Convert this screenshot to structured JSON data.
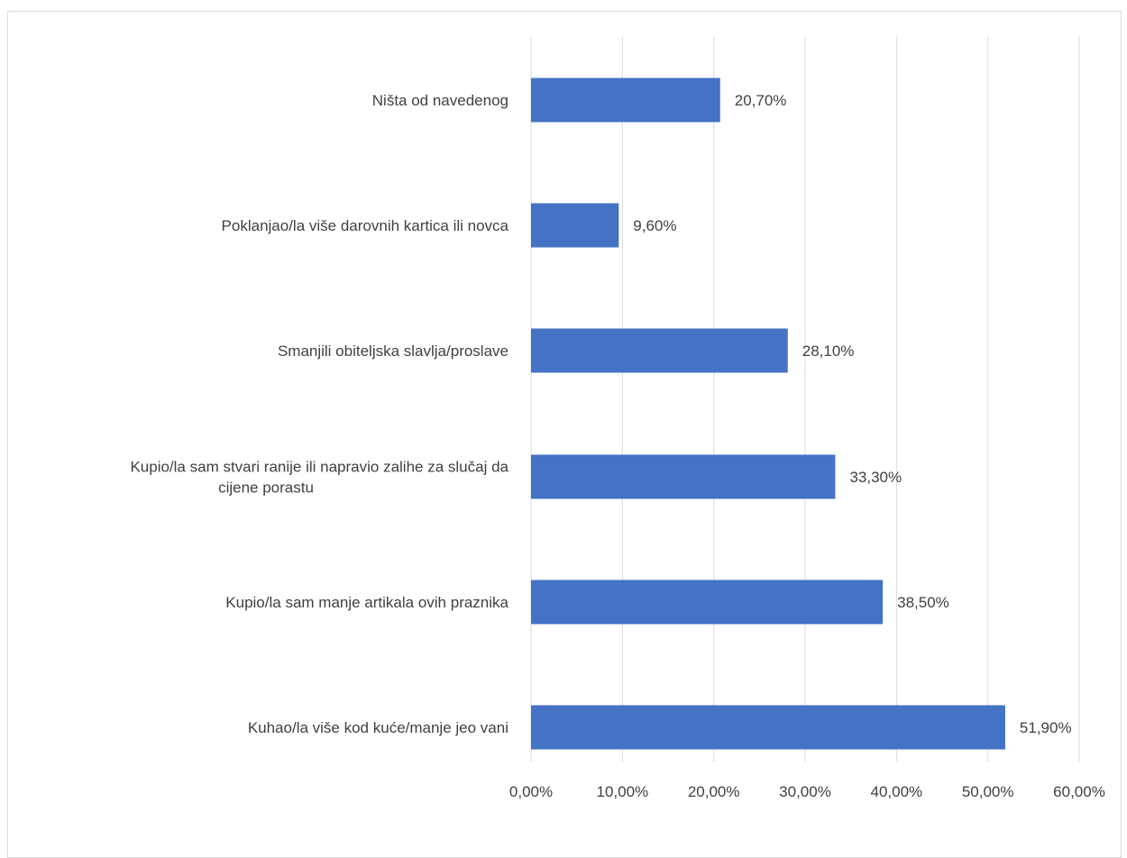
{
  "chart_data": {
    "type": "bar",
    "orientation": "horizontal",
    "categories": [
      "Ništa od navedenog",
      "Poklanjao/la više darovnih kartica ili novca",
      "Smanjili obiteljska slavlja/proslave",
      "Kupio/la sam stvari ranije ili napravio zalihe za slučaj da cijene porastu",
      "Kupio/la sam manje artikala ovih praznika",
      "Kuhao/la više kod kuće/manje jeo vani"
    ],
    "category_label_lines": [
      [
        "Ništa od navedenog"
      ],
      [
        "Poklanjao/la više darovnih kartica ili novca"
      ],
      [
        "Smanjili obiteljska slavlja/proslave"
      ],
      [
        "Kupio/la sam stvari ranije ili napravio zalihe za slučaj da",
        "cijene porastu"
      ],
      [
        "Kupio/la sam manje artikala ovih praznika"
      ],
      [
        "Kuhao/la više kod kuće/manje jeo vani"
      ]
    ],
    "values": [
      20.7,
      9.6,
      28.1,
      33.3,
      38.5,
      51.9
    ],
    "value_labels": [
      "20,70%",
      "9,60%",
      "28,10%",
      "33,30%",
      "38,50%",
      "51,90%"
    ],
    "xlim": [
      0,
      60
    ],
    "xticks": [
      "0,00%",
      "10,00%",
      "20,00%",
      "30,00%",
      "40,00%",
      "50,00%",
      "60,00%"
    ],
    "xtick_values": [
      0,
      10,
      20,
      30,
      40,
      50,
      60
    ],
    "grid": true,
    "legend": "none",
    "bar_color": "#4472c4",
    "grid_color": "#d9d9d9"
  }
}
